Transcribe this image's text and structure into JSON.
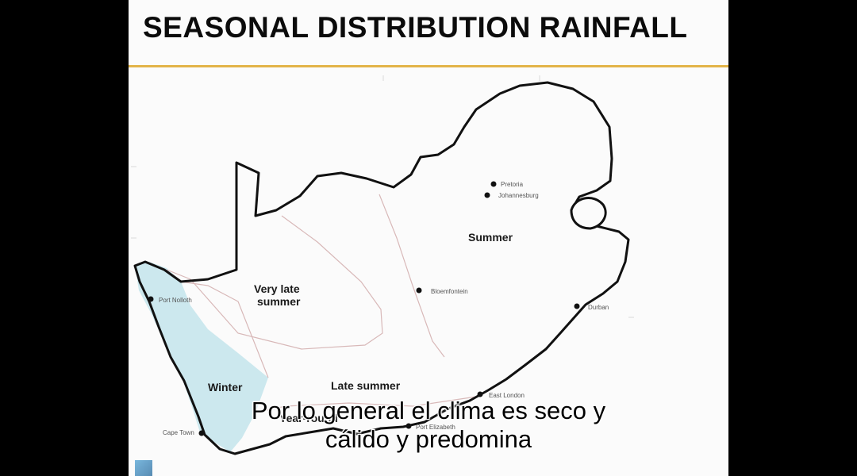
{
  "slide": {
    "title": "SEASONAL DISTRIBUTION RAINFALL"
  },
  "map": {
    "regions": {
      "summer": "Summer",
      "very_late_summer_line1": "Very late",
      "very_late_summer_line2": "summer",
      "late_summer": "Late summer",
      "winter": "Winter",
      "year_round": "Year-round"
    },
    "cities": {
      "pretoria": "Pretoria",
      "johannesburg": "Johannesburg",
      "bloemfontein": "Bloemfontein",
      "durban": "Durban",
      "port_nolloth": "Port Nolloth",
      "east_london": "East London",
      "port_elizabeth": "Port Elizabeth",
      "cape_town": "Cape Town"
    },
    "colors": {
      "winter_fill": "#cce8ee",
      "outline": "#111111",
      "boundary": "#d8b8b8"
    }
  },
  "caption": {
    "line1": "Por lo general el clima es seco y",
    "line2": "cálido y predomina"
  }
}
